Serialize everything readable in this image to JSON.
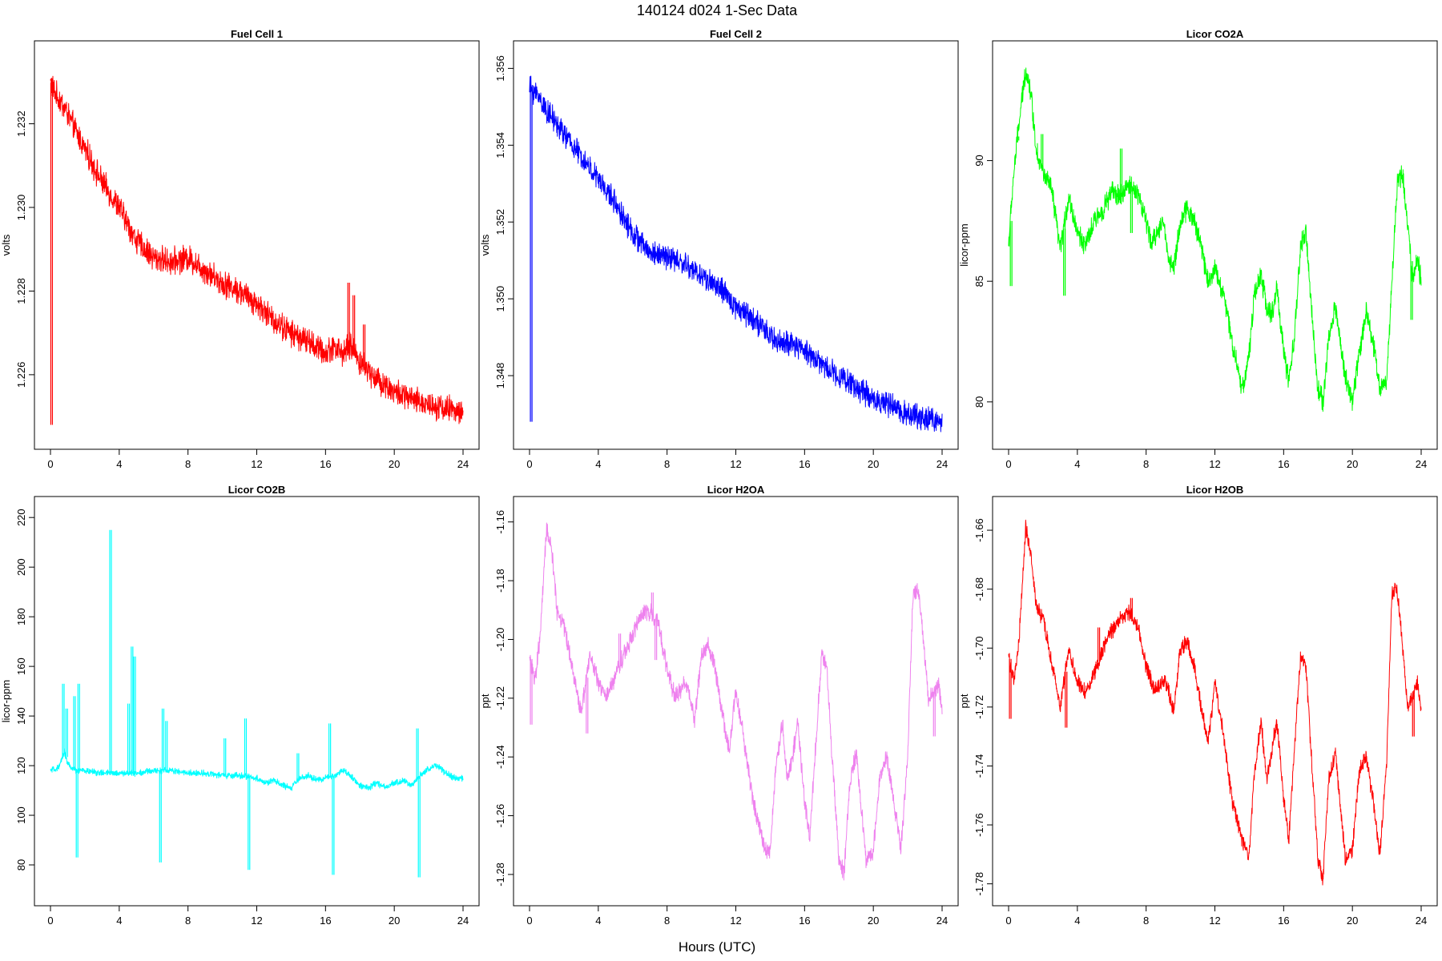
{
  "page": {
    "super_title": "140124   d024   1-Sec Data",
    "x_axis_label": "Hours (UTC)"
  },
  "chart_data": [
    {
      "type": "line",
      "title": "Fuel Cell 1",
      "xlabel": "",
      "ylabel": "volts",
      "color": "#ff0000",
      "xlim": [
        0,
        24
      ],
      "ylim": [
        1.2246,
        1.2336
      ],
      "xticks": [
        0,
        4,
        8,
        12,
        16,
        20,
        24
      ],
      "yticks": [
        1.226,
        1.228,
        1.23,
        1.232
      ],
      "ytick_labels": [
        "1.226",
        "1.228",
        "1.230",
        "1.232"
      ],
      "noise": 0.00025,
      "x": [
        0,
        0.3,
        0.8,
        1.5,
        2,
        2.5,
        3,
        4,
        4.5,
        5,
        5.5,
        6,
        7,
        8,
        9,
        10,
        11,
        12,
        13,
        14,
        15,
        16,
        16.5,
        17,
        17.5,
        18,
        19,
        20,
        21,
        22,
        23,
        24
      ],
      "y": [
        1.233,
        1.2327,
        1.2324,
        1.2318,
        1.2314,
        1.231,
        1.2306,
        1.23,
        1.2296,
        1.2292,
        1.229,
        1.2288,
        1.2287,
        1.2288,
        1.2285,
        1.2282,
        1.228,
        1.2277,
        1.2273,
        1.227,
        1.2268,
        1.2265,
        1.2267,
        1.2265,
        1.2267,
        1.2263,
        1.2259,
        1.2256,
        1.2254,
        1.2253,
        1.2252,
        1.2251
      ],
      "spikes": [
        {
          "x": 0.02,
          "y": 1.2248
        },
        {
          "x": 17.3,
          "y": 1.2282
        },
        {
          "x": 17.6,
          "y": 1.2279
        },
        {
          "x": 18.2,
          "y": 1.2272
        }
      ]
    },
    {
      "type": "line",
      "title": "Fuel Cell 2",
      "xlabel": "",
      "ylabel": "volts",
      "color": "#0000ff",
      "xlim": [
        0,
        24
      ],
      "ylim": [
        1.3465,
        1.3563
      ],
      "xticks": [
        0,
        4,
        8,
        12,
        16,
        20,
        24
      ],
      "yticks": [
        1.348,
        1.35,
        1.352,
        1.354,
        1.356
      ],
      "ytick_labels": [
        "1.348",
        "1.350",
        "1.352",
        "1.354",
        "1.356"
      ],
      "noise": 0.00025,
      "x": [
        0,
        0.5,
        1,
        2,
        3,
        4,
        5,
        6,
        7,
        8,
        9,
        10,
        11,
        12,
        13,
        14,
        15,
        16,
        17,
        18,
        19,
        20,
        21,
        22,
        23,
        24
      ],
      "y": [
        1.3555,
        1.3553,
        1.3549,
        1.3543,
        1.3537,
        1.3531,
        1.3525,
        1.3517,
        1.3512,
        1.3511,
        1.3509,
        1.3506,
        1.3503,
        1.3498,
        1.3495,
        1.349,
        1.3488,
        1.3487,
        1.3483,
        1.348,
        1.3477,
        1.3474,
        1.3472,
        1.347,
        1.3469,
        1.3468
      ],
      "spikes": [
        {
          "x": 0.05,
          "y": 1.3468
        }
      ]
    },
    {
      "type": "line",
      "title": "Licor CO2A",
      "xlabel": "",
      "ylabel": "licor-ppm",
      "color": "#00ff00",
      "xlim": [
        0,
        24
      ],
      "ylim": [
        78.7,
        94.3
      ],
      "xticks": [
        0,
        4,
        8,
        12,
        16,
        20,
        24
      ],
      "yticks": [
        80,
        85,
        90
      ],
      "ytick_labels": [
        "80",
        "85",
        "90"
      ],
      "noise": 0.35,
      "x": [
        0,
        0.3,
        0.6,
        1.0,
        1.3,
        1.6,
        2,
        2.5,
        3,
        3.5,
        4,
        4.5,
        5,
        5.5,
        6,
        6.5,
        7,
        7.5,
        8,
        8.3,
        8.6,
        9,
        9.3,
        9.6,
        10,
        10.4,
        10.8,
        11.2,
        11.6,
        12,
        12.5,
        13,
        13.3,
        13.6,
        14,
        14.3,
        14.7,
        15,
        15.3,
        15.6,
        16,
        16.3,
        16.6,
        17,
        17.3,
        17.6,
        18,
        18.3,
        18.6,
        19,
        19.3,
        19.6,
        20,
        20.4,
        20.8,
        21.2,
        21.6,
        22,
        22.3,
        22.6,
        22.9,
        23.2,
        23.5,
        23.8,
        24
      ],
      "y": [
        86.5,
        89.5,
        91.5,
        93.8,
        92.8,
        90.5,
        89.5,
        88.8,
        86.3,
        88.5,
        87.0,
        86.5,
        87.5,
        88.0,
        88.7,
        88.5,
        89.0,
        88.7,
        87.5,
        86.5,
        87.0,
        87.5,
        86.0,
        85.5,
        87.5,
        88.0,
        87.5,
        86.5,
        85.0,
        85.5,
        84.5,
        82.5,
        81.5,
        80.5,
        82.0,
        84.5,
        85.2,
        84.0,
        83.5,
        84.8,
        82.0,
        80.8,
        82.5,
        86.5,
        87.0,
        84.0,
        80.5,
        80.0,
        82.5,
        84.0,
        82.5,
        81.0,
        80.0,
        82.0,
        83.8,
        82.5,
        80.5,
        81.0,
        85.0,
        89.0,
        89.5,
        87.5,
        85.0,
        86.0,
        85.0
      ],
      "spikes": [
        {
          "x": 0.1,
          "y": 84.8
        },
        {
          "x": 0.5,
          "y": 91.0
        },
        {
          "x": 1.9,
          "y": 91.1
        },
        {
          "x": 3.2,
          "y": 84.4
        },
        {
          "x": 6.5,
          "y": 90.5
        },
        {
          "x": 7.1,
          "y": 87.0
        },
        {
          "x": 23.4,
          "y": 83.4
        }
      ]
    },
    {
      "type": "line",
      "title": "Licor CO2B",
      "xlabel": "",
      "ylabel": "licor-ppm",
      "color": "#00ffff",
      "xlim": [
        0,
        24
      ],
      "ylim": [
        70,
        222
      ],
      "xticks": [
        0,
        4,
        8,
        12,
        16,
        20,
        24
      ],
      "yticks": [
        80,
        100,
        120,
        140,
        160,
        180,
        200,
        220
      ],
      "ytick_labels": [
        "80",
        "100",
        "120",
        "140",
        "160",
        "180",
        "200",
        "220"
      ],
      "noise": 1.0,
      "x": [
        0,
        0.5,
        0.8,
        1.0,
        1.2,
        1.5,
        2,
        3,
        4,
        5,
        6,
        7,
        8,
        9,
        10,
        11,
        12,
        12.5,
        13,
        13.5,
        14,
        14.5,
        15,
        15.5,
        16,
        16.5,
        17,
        17.5,
        18,
        18.5,
        19,
        19.5,
        20,
        20.5,
        21,
        21.5,
        22,
        22.5,
        23,
        23.5,
        24
      ],
      "y": [
        118,
        119,
        126,
        121,
        119,
        118,
        118,
        117,
        117,
        117,
        118,
        118,
        117,
        117,
        116,
        116,
        115,
        113,
        114,
        112,
        111,
        115,
        116,
        114,
        115,
        116,
        118,
        116,
        112,
        111,
        113,
        111,
        113,
        114,
        112,
        116,
        119,
        120,
        117,
        115,
        115
      ],
      "spikes": [
        {
          "x": 0.7,
          "y": 153
        },
        {
          "x": 0.9,
          "y": 143
        },
        {
          "x": 1.35,
          "y": 148
        },
        {
          "x": 1.5,
          "y": 83
        },
        {
          "x": 1.6,
          "y": 153
        },
        {
          "x": 3.45,
          "y": 215
        },
        {
          "x": 4.5,
          "y": 145
        },
        {
          "x": 4.7,
          "y": 168
        },
        {
          "x": 4.85,
          "y": 164
        },
        {
          "x": 6.35,
          "y": 81
        },
        {
          "x": 6.5,
          "y": 143
        },
        {
          "x": 6.7,
          "y": 138
        },
        {
          "x": 10.1,
          "y": 131
        },
        {
          "x": 11.3,
          "y": 139
        },
        {
          "x": 11.5,
          "y": 78
        },
        {
          "x": 14.35,
          "y": 125
        },
        {
          "x": 16.2,
          "y": 137
        },
        {
          "x": 16.4,
          "y": 76
        },
        {
          "x": 21.3,
          "y": 135
        },
        {
          "x": 21.4,
          "y": 75
        }
      ]
    },
    {
      "type": "line",
      "title": "Licor H2OA",
      "xlabel": "",
      "ylabel": "ppt",
      "color": "#ee82ee",
      "xlim": [
        0,
        24
      ],
      "ylim": [
        -1.2852,
        -1.1568
      ],
      "xticks": [
        0,
        4,
        8,
        12,
        16,
        20,
        24
      ],
      "yticks": [
        -1.28,
        -1.26,
        -1.24,
        -1.22,
        -1.2,
        -1.18,
        -1.16
      ],
      "ytick_labels": [
        "-1.28",
        "-1.26",
        "-1.24",
        "-1.22",
        "-1.20",
        "-1.18",
        "-1.16"
      ],
      "noise": 0.0025,
      "x": [
        0,
        0.3,
        0.6,
        1.0,
        1.3,
        1.6,
        2,
        2.5,
        3,
        3.5,
        4,
        4.5,
        5,
        5.5,
        6,
        6.5,
        7,
        7.5,
        8,
        8.5,
        9,
        9.3,
        9.6,
        10,
        10.4,
        10.8,
        11.2,
        11.6,
        12,
        12.5,
        13,
        13.3,
        13.6,
        14,
        14.3,
        14.7,
        15,
        15.3,
        15.6,
        16,
        16.3,
        16.6,
        17,
        17.3,
        17.6,
        18,
        18.3,
        18.6,
        19,
        19.3,
        19.6,
        20,
        20.4,
        20.8,
        21.2,
        21.6,
        22,
        22.3,
        22.6,
        22.9,
        23.2,
        23.5,
        23.8,
        24
      ],
      "y": [
        -1.205,
        -1.215,
        -1.2,
        -1.162,
        -1.17,
        -1.19,
        -1.195,
        -1.21,
        -1.225,
        -1.205,
        -1.215,
        -1.22,
        -1.212,
        -1.205,
        -1.198,
        -1.192,
        -1.19,
        -1.195,
        -1.21,
        -1.22,
        -1.215,
        -1.218,
        -1.228,
        -1.205,
        -1.202,
        -1.21,
        -1.225,
        -1.238,
        -1.218,
        -1.235,
        -1.255,
        -1.262,
        -1.27,
        -1.272,
        -1.245,
        -1.228,
        -1.248,
        -1.24,
        -1.228,
        -1.255,
        -1.268,
        -1.24,
        -1.205,
        -1.21,
        -1.24,
        -1.275,
        -1.28,
        -1.25,
        -1.238,
        -1.258,
        -1.276,
        -1.272,
        -1.245,
        -1.24,
        -1.255,
        -1.272,
        -1.24,
        -1.185,
        -1.182,
        -1.2,
        -1.22,
        -1.218,
        -1.215,
        -1.225
      ],
      "spikes": [
        {
          "x": 0.05,
          "y": -1.229
        },
        {
          "x": 3.3,
          "y": -1.232
        },
        {
          "x": 5.2,
          "y": -1.198
        },
        {
          "x": 7.1,
          "y": -1.184
        },
        {
          "x": 7.3,
          "y": -1.207
        },
        {
          "x": 23.5,
          "y": -1.233
        }
      ]
    },
    {
      "type": "line",
      "title": "Licor H2OB",
      "xlabel": "",
      "ylabel": "ppt",
      "color": "#ff0000",
      "xlim": [
        0,
        24
      ],
      "ylim": [
        -1.782,
        -1.654
      ],
      "xticks": [
        0,
        4,
        8,
        12,
        16,
        20,
        24
      ],
      "yticks": [
        -1.78,
        -1.76,
        -1.74,
        -1.72,
        -1.7,
        -1.68,
        -1.66
      ],
      "ytick_labels": [
        "-1.78",
        "-1.76",
        "-1.74",
        "-1.72",
        "-1.70",
        "-1.68",
        "-1.66"
      ],
      "noise": 0.0022,
      "x": [
        0,
        0.3,
        0.6,
        1.0,
        1.3,
        1.6,
        2,
        2.5,
        3,
        3.5,
        4,
        4.5,
        5,
        5.5,
        6,
        6.5,
        7,
        7.5,
        8,
        8.5,
        9,
        9.3,
        9.6,
        10,
        10.4,
        10.8,
        11.2,
        11.6,
        12,
        12.5,
        13,
        13.3,
        13.6,
        14,
        14.3,
        14.7,
        15,
        15.3,
        15.6,
        16,
        16.3,
        16.6,
        17,
        17.3,
        17.6,
        18,
        18.3,
        18.6,
        19,
        19.3,
        19.6,
        20,
        20.4,
        20.8,
        21.2,
        21.6,
        22,
        22.3,
        22.6,
        22.9,
        23.2,
        23.5,
        23.8,
        24
      ],
      "y": [
        -1.702,
        -1.712,
        -1.698,
        -1.659,
        -1.668,
        -1.686,
        -1.69,
        -1.705,
        -1.72,
        -1.7,
        -1.712,
        -1.715,
        -1.708,
        -1.7,
        -1.694,
        -1.69,
        -1.688,
        -1.692,
        -1.706,
        -1.715,
        -1.71,
        -1.714,
        -1.722,
        -1.7,
        -1.698,
        -1.706,
        -1.72,
        -1.732,
        -1.712,
        -1.73,
        -1.752,
        -1.758,
        -1.766,
        -1.77,
        -1.742,
        -1.725,
        -1.744,
        -1.736,
        -1.724,
        -1.752,
        -1.765,
        -1.736,
        -1.702,
        -1.706,
        -1.736,
        -1.772,
        -1.778,
        -1.746,
        -1.735,
        -1.754,
        -1.772,
        -1.768,
        -1.742,
        -1.736,
        -1.752,
        -1.77,
        -1.738,
        -1.682,
        -1.68,
        -1.698,
        -1.72,
        -1.716,
        -1.712,
        -1.722
      ],
      "spikes": [
        {
          "x": 0.05,
          "y": -1.724
        },
        {
          "x": 3.3,
          "y": -1.727
        },
        {
          "x": 5.2,
          "y": -1.693
        },
        {
          "x": 7.1,
          "y": -1.683
        },
        {
          "x": 23.5,
          "y": -1.73
        }
      ]
    }
  ]
}
